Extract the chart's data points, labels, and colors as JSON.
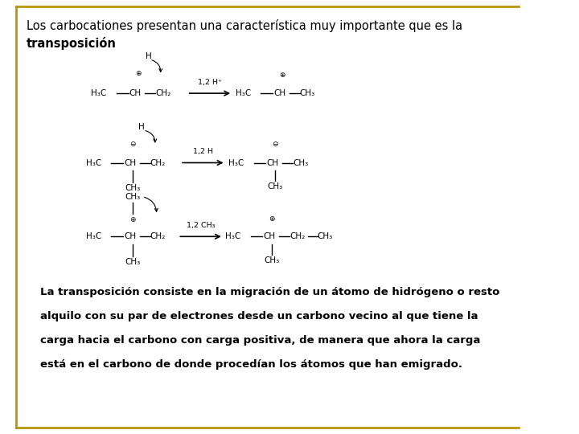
{
  "title_line1": "Los carbocationes presentan una característica muy importante que es la",
  "title_line2": "transposición",
  "bottom_text_lines": [
    "La transposición consiste en la migración de un átomo de hidrógeno o resto",
    "alquilo con su par de electrones desde un carbono vecino al que tiene la",
    "carga hacia el carbono con carga positiva, de manera que ahora la carga",
    "está en el carbono de donde procedían los átomos que han emigrado."
  ],
  "border_color": "#B8960C",
  "bg_color": "#FFFFFF",
  "text_color": "#000000",
  "font_size_title": 10.5,
  "font_size_chem": 7.5,
  "font_size_body": 9.5
}
